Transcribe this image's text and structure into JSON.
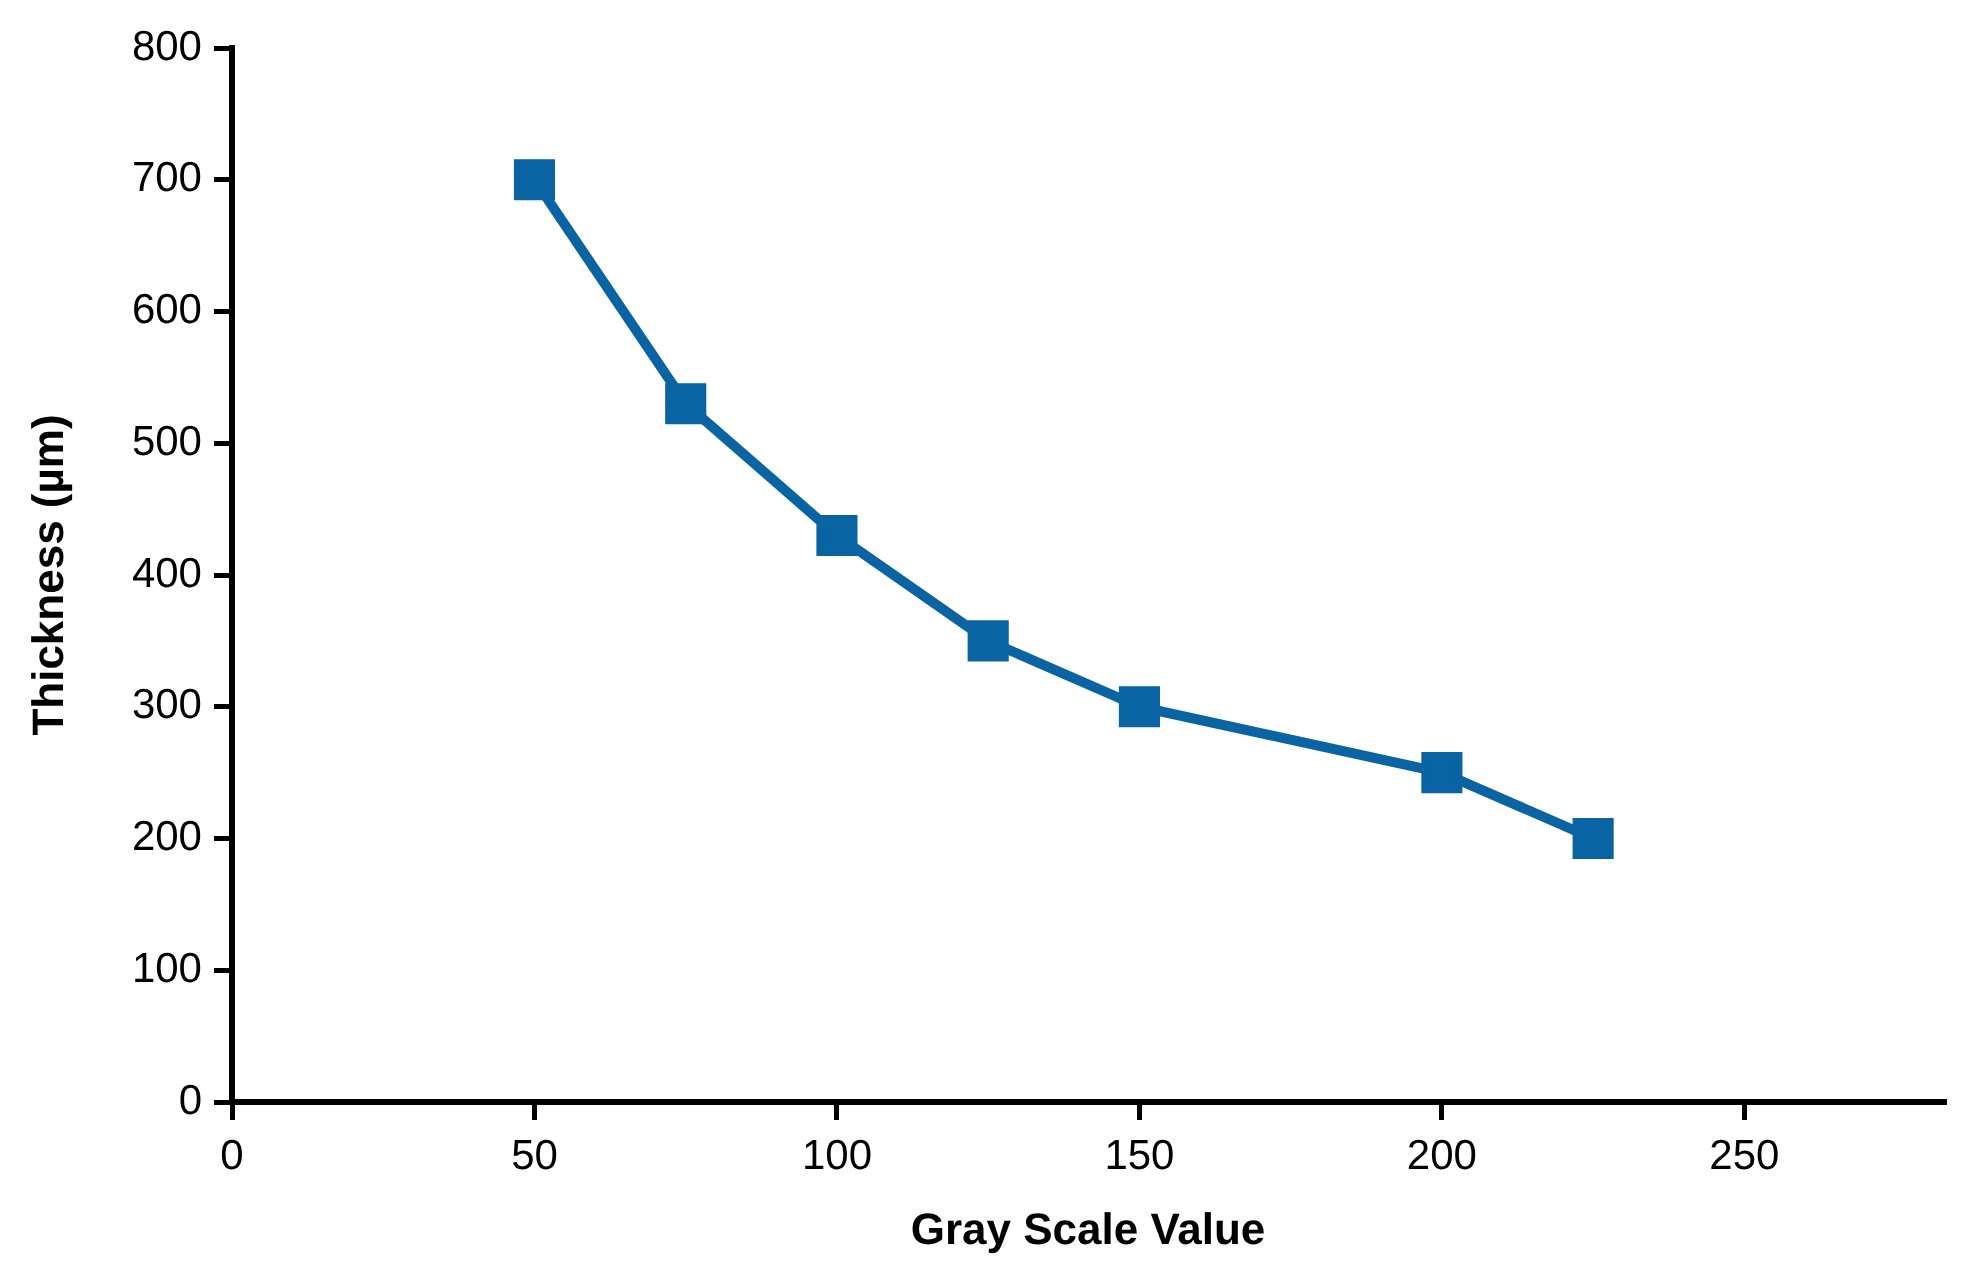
{
  "chart_data": {
    "type": "line",
    "xlabel": "Gray Scale Value",
    "ylabel": "Thickness (µm)",
    "x": [
      50,
      75,
      100,
      125,
      150,
      200,
      225
    ],
    "series": [
      {
        "color": "#0a64a4",
        "values": [
          700,
          530,
          430,
          350,
          300,
          250,
          200
        ]
      }
    ],
    "xlim": [
      0,
      283
    ],
    "xticks": [
      0,
      50,
      100,
      150,
      200,
      250
    ],
    "ylim": [
      0,
      800
    ],
    "yticks": [
      0,
      100,
      200,
      300,
      400,
      500,
      600,
      700,
      800
    ],
    "grid": false,
    "legend": false,
    "marker": "square",
    "line_style": "solid"
  }
}
